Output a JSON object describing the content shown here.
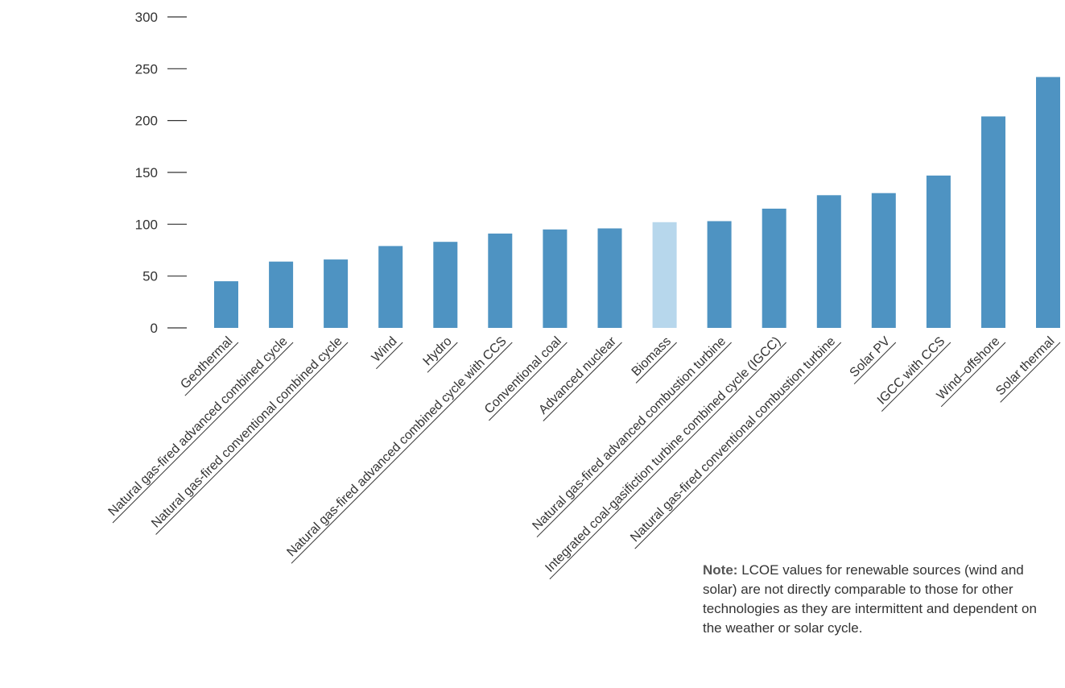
{
  "chart_data": {
    "type": "bar",
    "title": "",
    "xlabel": "",
    "ylabel": "",
    "ylim": [
      0,
      300
    ],
    "yticks": [
      0,
      50,
      100,
      150,
      200,
      250,
      300
    ],
    "grid": false,
    "categories": [
      "Geothermal",
      "Natural gas-fired advanced combined cycle",
      "Natural gas-fired conventional combined cycle",
      "Wind",
      "Hydro",
      "Natural gas-fired advanced combined cycle with CCS",
      "Conventional coal",
      "Advanced nuclear",
      "Biomass",
      "Natural gas-fired advanced combustion turbine",
      "Integrated coal-gasifiction turbine combined cycle (IGCC)",
      "Natural gas-fired conventional combustion turbine",
      "Solar PV",
      "IGCC with CCS",
      "Wind–offshore",
      "Solar thermal"
    ],
    "values": [
      45,
      64,
      66,
      79,
      83,
      91,
      95,
      96,
      102,
      103,
      115,
      128,
      130,
      147,
      204,
      242
    ],
    "colors": {
      "bar": "#4e93c2",
      "highlight": "#b7d7ec",
      "axis": "#333333"
    },
    "highlight_index": 8
  },
  "note": {
    "label": "Note:",
    "text": "LCOE values for renewable sources (wind and solar) are not directly comparable to those for other technologies as they are intermittent and dependent on the weather or solar cycle."
  }
}
